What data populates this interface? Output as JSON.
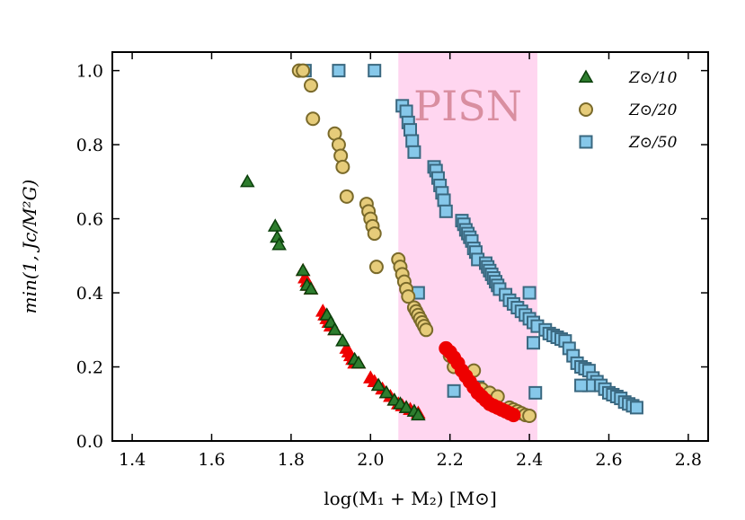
{
  "chart_data": {
    "type": "scatter",
    "xlabel": "log(M₁ + M₂) [M⊙]",
    "ylabel": "min(1, Jc/M²G)",
    "xlim": [
      1.35,
      2.85
    ],
    "ylim": [
      0.0,
      1.05
    ],
    "xticks": [
      "1.4",
      "1.6",
      "1.8",
      "2.0",
      "2.2",
      "2.4",
      "2.6",
      "2.8"
    ],
    "yticks": [
      "0.0",
      "0.2",
      "0.4",
      "0.6",
      "0.8",
      "1.0"
    ],
    "grid": false,
    "legend": "top-right",
    "shaded_region": {
      "label": "PISN",
      "x_range": [
        2.07,
        2.42
      ],
      "color": "#ffd6f0"
    },
    "series": [
      {
        "name": "Z⊙/10",
        "marker": "triangle",
        "fill": "#2e7d2e",
        "edge": "#0a3f0a",
        "points": [
          [
            1.69,
            0.7
          ],
          [
            1.76,
            0.58
          ],
          [
            1.765,
            0.55
          ],
          [
            1.77,
            0.53
          ],
          [
            1.83,
            0.46
          ],
          [
            1.84,
            0.42
          ],
          [
            1.85,
            0.41
          ],
          [
            1.89,
            0.34
          ],
          [
            1.9,
            0.32
          ],
          [
            1.91,
            0.3
          ],
          [
            1.93,
            0.27
          ],
          [
            1.96,
            0.22
          ],
          [
            1.97,
            0.21
          ],
          [
            2.02,
            0.15
          ],
          [
            2.04,
            0.13
          ],
          [
            2.06,
            0.11
          ],
          [
            2.075,
            0.1
          ],
          [
            2.09,
            0.09
          ],
          [
            2.11,
            0.08
          ],
          [
            2.12,
            0.07
          ]
        ]
      },
      {
        "name": "",
        "marker": "triangle",
        "fill": "#ee0000",
        "edge": "#ee0000",
        "points": [
          [
            1.83,
            0.46
          ],
          [
            1.835,
            0.44
          ],
          [
            1.84,
            0.43
          ],
          [
            1.845,
            0.42
          ],
          [
            1.85,
            0.41
          ],
          [
            1.88,
            0.35
          ],
          [
            1.885,
            0.34
          ],
          [
            1.89,
            0.33
          ],
          [
            1.895,
            0.32
          ],
          [
            1.9,
            0.31
          ],
          [
            1.91,
            0.3
          ],
          [
            1.94,
            0.25
          ],
          [
            1.945,
            0.24
          ],
          [
            1.95,
            0.23
          ],
          [
            1.955,
            0.22
          ],
          [
            1.96,
            0.21
          ],
          [
            1.97,
            0.21
          ],
          [
            2.0,
            0.17
          ],
          [
            2.01,
            0.16
          ],
          [
            2.02,
            0.15
          ],
          [
            2.03,
            0.14
          ],
          [
            2.04,
            0.13
          ],
          [
            2.05,
            0.12
          ],
          [
            2.06,
            0.11
          ],
          [
            2.07,
            0.1
          ],
          [
            2.08,
            0.095
          ],
          [
            2.09,
            0.09
          ],
          [
            2.1,
            0.085
          ],
          [
            2.11,
            0.08
          ],
          [
            2.12,
            0.075
          ]
        ]
      },
      {
        "name": "",
        "marker": "circle",
        "fill": "#ee0000",
        "edge": "#ee0000",
        "points": [
          [
            2.19,
            0.25
          ],
          [
            2.2,
            0.24
          ],
          [
            2.21,
            0.225
          ],
          [
            2.22,
            0.21
          ],
          [
            2.23,
            0.19
          ],
          [
            2.24,
            0.175
          ],
          [
            2.25,
            0.16
          ],
          [
            2.26,
            0.145
          ],
          [
            2.27,
            0.13
          ],
          [
            2.28,
            0.12
          ],
          [
            2.29,
            0.11
          ],
          [
            2.3,
            0.1
          ],
          [
            2.31,
            0.095
          ],
          [
            2.32,
            0.09
          ],
          [
            2.33,
            0.085
          ],
          [
            2.34,
            0.08
          ],
          [
            2.35,
            0.075
          ],
          [
            2.36,
            0.07
          ]
        ]
      },
      {
        "name": "Z⊙/20",
        "marker": "circle",
        "fill": "#e6cc7a",
        "edge": "#7a6a2a",
        "points": [
          [
            1.82,
            1.0
          ],
          [
            1.83,
            1.0
          ],
          [
            1.85,
            0.96
          ],
          [
            1.855,
            0.87
          ],
          [
            1.91,
            0.83
          ],
          [
            1.92,
            0.8
          ],
          [
            1.925,
            0.77
          ],
          [
            1.93,
            0.74
          ],
          [
            1.94,
            0.66
          ],
          [
            1.99,
            0.64
          ],
          [
            1.995,
            0.62
          ],
          [
            2.0,
            0.6
          ],
          [
            2.005,
            0.58
          ],
          [
            2.01,
            0.56
          ],
          [
            2.015,
            0.47
          ],
          [
            2.07,
            0.49
          ],
          [
            2.075,
            0.47
          ],
          [
            2.08,
            0.45
          ],
          [
            2.085,
            0.43
          ],
          [
            2.09,
            0.41
          ],
          [
            2.095,
            0.39
          ],
          [
            2.11,
            0.36
          ],
          [
            2.115,
            0.35
          ],
          [
            2.12,
            0.34
          ],
          [
            2.125,
            0.33
          ],
          [
            2.13,
            0.32
          ],
          [
            2.135,
            0.31
          ],
          [
            2.14,
            0.3
          ],
          [
            2.2,
            0.23
          ],
          [
            2.21,
            0.2
          ],
          [
            2.26,
            0.19
          ],
          [
            2.28,
            0.14
          ],
          [
            2.3,
            0.13
          ],
          [
            2.32,
            0.12
          ],
          [
            2.35,
            0.09
          ],
          [
            2.36,
            0.085
          ],
          [
            2.37,
            0.08
          ],
          [
            2.38,
            0.075
          ],
          [
            2.39,
            0.07
          ],
          [
            2.4,
            0.068
          ]
        ]
      },
      {
        "name": "Z⊙/50",
        "marker": "square",
        "fill": "#86c8ea",
        "edge": "#3a6880",
        "points": [
          [
            1.835,
            1.0
          ],
          [
            1.92,
            1.0
          ],
          [
            2.01,
            1.0
          ],
          [
            2.08,
            0.905
          ],
          [
            2.09,
            0.89
          ],
          [
            2.095,
            0.86
          ],
          [
            2.1,
            0.84
          ],
          [
            2.105,
            0.81
          ],
          [
            2.11,
            0.78
          ],
          [
            2.16,
            0.74
          ],
          [
            2.165,
            0.73
          ],
          [
            2.17,
            0.71
          ],
          [
            2.175,
            0.69
          ],
          [
            2.18,
            0.67
          ],
          [
            2.185,
            0.65
          ],
          [
            2.19,
            0.62
          ],
          [
            2.23,
            0.595
          ],
          [
            2.235,
            0.585
          ],
          [
            2.24,
            0.57
          ],
          [
            2.245,
            0.56
          ],
          [
            2.25,
            0.55
          ],
          [
            2.255,
            0.54
          ],
          [
            2.26,
            0.52
          ],
          [
            2.265,
            0.51
          ],
          [
            2.27,
            0.49
          ],
          [
            2.29,
            0.48
          ],
          [
            2.295,
            0.47
          ],
          [
            2.3,
            0.46
          ],
          [
            2.305,
            0.45
          ],
          [
            2.31,
            0.44
          ],
          [
            2.315,
            0.43
          ],
          [
            2.32,
            0.42
          ],
          [
            2.325,
            0.41
          ],
          [
            2.34,
            0.395
          ],
          [
            2.35,
            0.38
          ],
          [
            2.36,
            0.37
          ],
          [
            2.37,
            0.36
          ],
          [
            2.38,
            0.35
          ],
          [
            2.39,
            0.34
          ],
          [
            2.4,
            0.33
          ],
          [
            2.41,
            0.32
          ],
          [
            2.42,
            0.31
          ],
          [
            2.44,
            0.3
          ],
          [
            2.45,
            0.29
          ],
          [
            2.46,
            0.285
          ],
          [
            2.47,
            0.28
          ],
          [
            2.48,
            0.275
          ],
          [
            2.49,
            0.27
          ],
          [
            2.5,
            0.25
          ],
          [
            2.51,
            0.23
          ],
          [
            2.52,
            0.21
          ],
          [
            2.53,
            0.2
          ],
          [
            2.54,
            0.195
          ],
          [
            2.55,
            0.19
          ],
          [
            2.56,
            0.17
          ],
          [
            2.57,
            0.16
          ],
          [
            2.58,
            0.15
          ],
          [
            2.59,
            0.14
          ],
          [
            2.6,
            0.13
          ],
          [
            2.61,
            0.125
          ],
          [
            2.62,
            0.12
          ],
          [
            2.63,
            0.115
          ],
          [
            2.64,
            0.105
          ],
          [
            2.65,
            0.1
          ],
          [
            2.66,
            0.095
          ],
          [
            2.67,
            0.09
          ],
          [
            2.21,
            0.135
          ],
          [
            2.27,
            0.145
          ],
          [
            2.35,
            0.085
          ],
          [
            2.415,
            0.13
          ],
          [
            2.41,
            0.265
          ],
          [
            2.55,
            0.15
          ],
          [
            2.53,
            0.15
          ],
          [
            2.4,
            0.4
          ],
          [
            2.12,
            0.4
          ]
        ]
      }
    ]
  }
}
